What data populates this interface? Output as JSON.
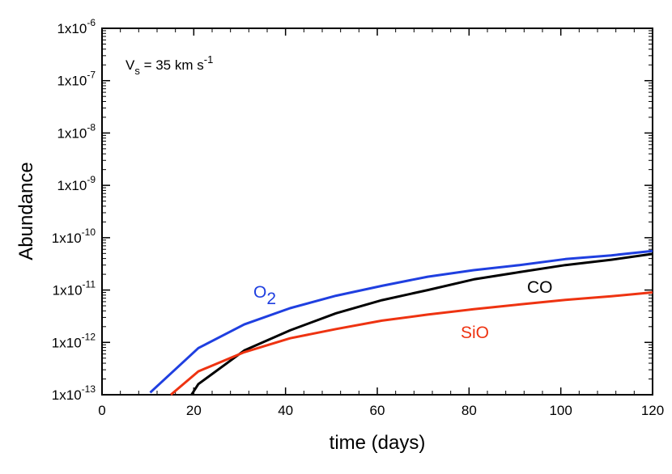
{
  "chart_data": {
    "type": "line",
    "title": "",
    "xlabel": "time (days)",
    "ylabel": "Abundance",
    "xlim": [
      0,
      120
    ],
    "ylim_log10": [
      -13,
      -6
    ],
    "yscale": "log",
    "grid": false,
    "x_ticks": [
      0,
      20,
      40,
      60,
      80,
      100,
      120
    ],
    "y_ticks": [
      {
        "exp": -13,
        "mantissa": "1x10",
        "exponent": "-13"
      },
      {
        "exp": -12,
        "mantissa": "1x10",
        "exponent": "-12"
      },
      {
        "exp": -11,
        "mantissa": "1x10",
        "exponent": "-11"
      },
      {
        "exp": -10,
        "mantissa": "1x10",
        "exponent": "-10"
      },
      {
        "exp": -9,
        "mantissa": "1x10",
        "exponent": "-9"
      },
      {
        "exp": -8,
        "mantissa": "1x10",
        "exponent": "-8"
      },
      {
        "exp": -7,
        "mantissa": "1x10",
        "exponent": "-7"
      },
      {
        "exp": -6,
        "mantissa": "1x10",
        "exponent": "-6"
      }
    ],
    "annotation": {
      "main": "V",
      "sub": "s",
      "mid": " = 35 km s",
      "sup": "-1"
    },
    "series": [
      {
        "name": "O2",
        "label_main": "O",
        "label_sub": "2",
        "color": "#1f3fe0",
        "x": [
          10.5,
          21,
          31,
          41,
          51,
          61,
          71,
          81,
          91,
          101,
          111,
          120
        ],
        "y": [
          1.1e-13,
          7.8e-13,
          2.2e-12,
          4.5e-12,
          7.8e-12,
          1.2e-11,
          1.8e-11,
          2.4e-11,
          3e-11,
          3.9e-11,
          4.6e-11,
          5.6e-11
        ]
      },
      {
        "name": "CO",
        "label_main": "CO",
        "label_sub": "",
        "color": "#000000",
        "x": [
          19.5,
          21,
          31,
          41,
          51,
          61,
          71,
          81,
          91,
          101,
          111,
          120
        ],
        "y": [
          1e-13,
          1.6e-13,
          7e-13,
          1.7e-12,
          3.6e-12,
          6.4e-12,
          1e-11,
          1.6e-11,
          2.2e-11,
          3e-11,
          3.8e-11,
          4.9e-11
        ]
      },
      {
        "name": "SiO",
        "label_main": "SiO",
        "label_sub": "",
        "color": "#ee3311",
        "x": [
          15,
          21,
          31,
          41,
          51,
          61,
          71,
          81,
          91,
          101,
          111,
          120
        ],
        "y": [
          1e-13,
          2.8e-13,
          6.5e-13,
          1.2e-12,
          1.8e-12,
          2.6e-12,
          3.4e-12,
          4.3e-12,
          5.3e-12,
          6.5e-12,
          7.6e-12,
          9e-12
        ]
      }
    ]
  }
}
